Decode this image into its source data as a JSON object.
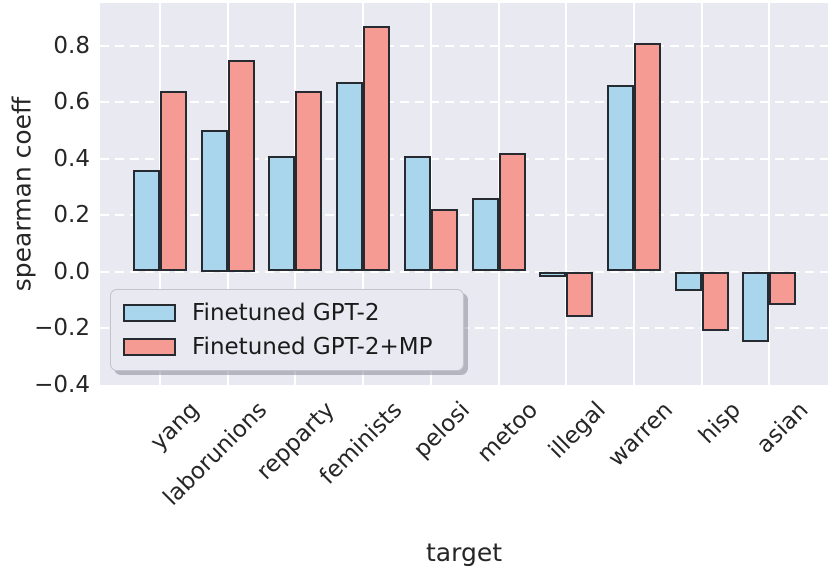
{
  "figure": {
    "background": "#ffffff",
    "plot_background": "#e9e9f1",
    "grid_color": "#ffffff",
    "text_color": "#262626",
    "bar_edge_color": "#262a31"
  },
  "chart_data": {
    "type": "bar",
    "title": "",
    "xlabel": "target",
    "ylabel": "spearman coeff",
    "categories": [
      "yang",
      "laborunions",
      "repparty",
      "feminists",
      "pelosi",
      "metoo",
      "illegal",
      "warren",
      "hisp",
      "asian"
    ],
    "series": [
      {
        "name": "Finetuned GPT-2",
        "color": "#a9d6ec",
        "values": [
          0.36,
          0.5,
          0.41,
          0.67,
          0.41,
          0.26,
          -0.01,
          0.66,
          -0.07,
          -0.25
        ]
      },
      {
        "name": "Finetuned GPT-2+MP",
        "color": "#f59b93",
        "values": [
          0.64,
          0.75,
          0.64,
          0.87,
          0.22,
          0.42,
          -0.16,
          0.81,
          -0.21,
          -0.12
        ]
      }
    ],
    "ylim": [
      -0.4,
      0.95
    ],
    "yticks": [
      0.8,
      0.6,
      0.4,
      0.2,
      0.0,
      -0.2,
      -0.4
    ],
    "ytick_labels": [
      "0.8",
      "0.6",
      "0.4",
      "0.2",
      "0.0",
      "−0.2",
      "−0.4"
    ],
    "grid": {
      "horizontal": "dashed-white",
      "vertical": "solid-white"
    },
    "legend": {
      "position": "lower-left"
    }
  }
}
